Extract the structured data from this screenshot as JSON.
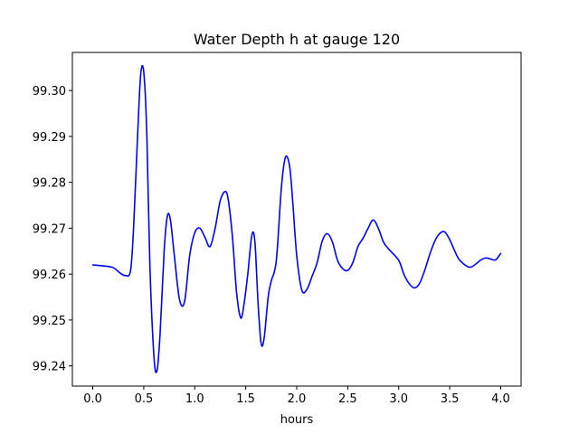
{
  "chart_data": {
    "type": "line",
    "title": "Water Depth h at gauge 120",
    "xlabel": "hours",
    "ylabel": "",
    "xlim": [
      -0.2,
      4.2
    ],
    "ylim": [
      99.2356,
      99.3083
    ],
    "xticks": [
      0.0,
      0.5,
      1.0,
      1.5,
      2.0,
      2.5,
      3.0,
      3.5,
      4.0
    ],
    "xtick_labels": [
      "0.0",
      "0.5",
      "1.0",
      "1.5",
      "2.0",
      "2.5",
      "3.0",
      "3.5",
      "4.0"
    ],
    "yticks": [
      99.24,
      99.25,
      99.26,
      99.27,
      99.28,
      99.29,
      99.3
    ],
    "ytick_labels": [
      "99.24",
      "99.25",
      "99.26",
      "99.27",
      "99.28",
      "99.29",
      "99.30"
    ],
    "grid": false,
    "color": "#0000ff",
    "series": [
      {
        "x": [
          0.0,
          0.1,
          0.2,
          0.27,
          0.32,
          0.37,
          0.4,
          0.44,
          0.47,
          0.5,
          0.53,
          0.56,
          0.6,
          0.63,
          0.66,
          0.7,
          0.73,
          0.76,
          0.8,
          0.85,
          0.9,
          0.95,
          1.0,
          1.05,
          1.1,
          1.15,
          1.2,
          1.25,
          1.3,
          1.33,
          1.37,
          1.41,
          1.45,
          1.48,
          1.52,
          1.56,
          1.59,
          1.62,
          1.65,
          1.68,
          1.72,
          1.75,
          1.8,
          1.85,
          1.89,
          1.93,
          1.96,
          2.0,
          2.05,
          2.1,
          2.15,
          2.2,
          2.25,
          2.3,
          2.35,
          2.4,
          2.45,
          2.5,
          2.55,
          2.6,
          2.65,
          2.7,
          2.75,
          2.8,
          2.85,
          2.9,
          3.0,
          3.05,
          3.1,
          3.15,
          3.2,
          3.25,
          3.3,
          3.35,
          3.4,
          3.45,
          3.5,
          3.55,
          3.6,
          3.7,
          3.8,
          3.85,
          3.9,
          3.95,
          4.0
        ],
        "y": [
          99.262,
          99.2618,
          99.2614,
          99.2602,
          99.2597,
          99.2607,
          99.27,
          99.2905,
          99.3035,
          99.304,
          99.2905,
          99.262,
          99.242,
          99.239,
          99.247,
          99.265,
          99.2725,
          99.272,
          99.264,
          99.2545,
          99.254,
          99.264,
          99.269,
          99.27,
          99.268,
          99.266,
          99.27,
          99.276,
          99.278,
          99.276,
          99.268,
          99.256,
          99.2505,
          99.253,
          99.26,
          99.2685,
          99.267,
          99.254,
          99.245,
          99.246,
          99.255,
          99.2585,
          99.263,
          99.279,
          99.2855,
          99.2835,
          99.276,
          99.264,
          99.2565,
          99.2567,
          99.2595,
          99.2625,
          99.2672,
          99.2688,
          99.267,
          99.263,
          99.2612,
          99.2608,
          99.2625,
          99.266,
          99.2678,
          99.27,
          99.2718,
          99.27,
          99.267,
          99.2655,
          99.263,
          99.26,
          99.258,
          99.257,
          99.2578,
          99.2605,
          99.264,
          99.267,
          99.2688,
          99.2692,
          99.2675,
          99.265,
          99.263,
          99.2615,
          99.263,
          99.2635,
          99.2633,
          99.2631,
          99.2645
        ]
      }
    ]
  }
}
